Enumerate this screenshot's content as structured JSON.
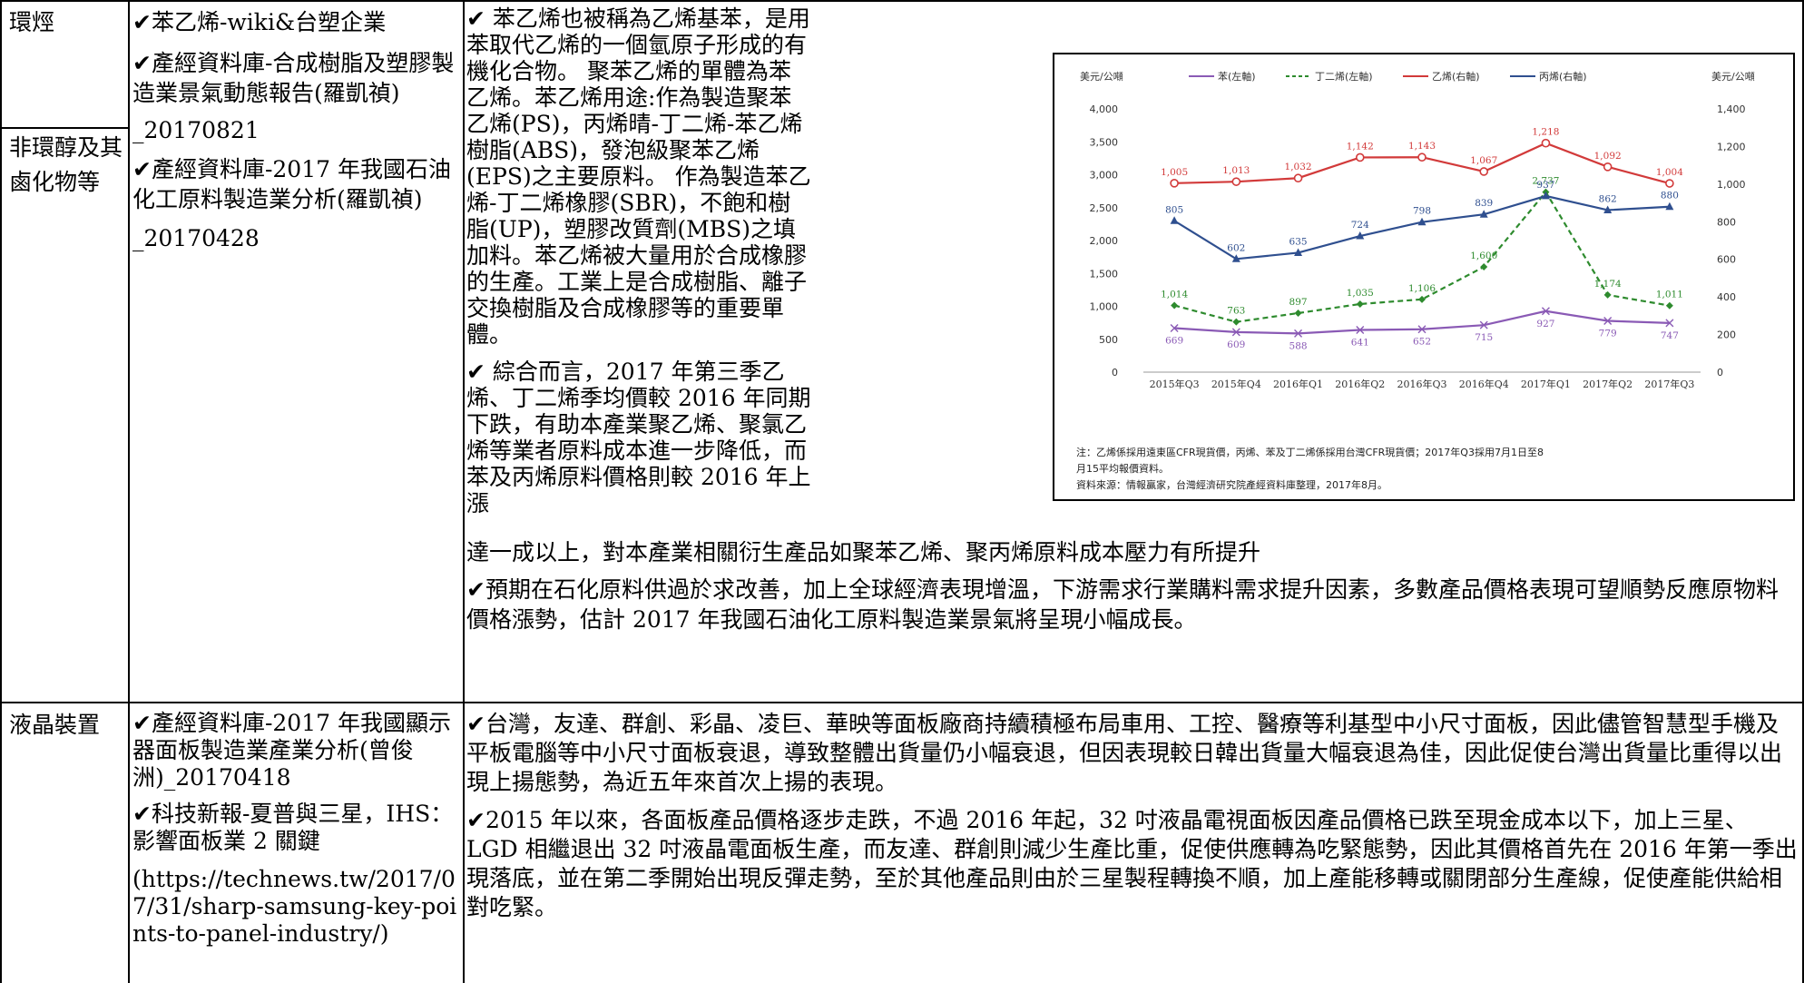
{
  "rows": [
    {
      "category": "環烴",
      "sources": [
        "✔苯乙烯-wiki&台塑企業",
        "✔產經資料庫-合成樹脂及塑膠製造業景氣動態報告(羅凱禎)",
        "_20170821",
        "✔產經資料庫-2017 年我國石油化工原料製造業分析(羅凱禎)",
        "_20170428"
      ],
      "content": [
        "✔  苯乙烯也被稱為乙烯基苯，是用苯取代乙烯的一個氫原子形成的有機化合物。 聚苯乙烯的單體為苯乙烯。苯乙烯用途:作為製造聚苯乙烯(PS)，丙烯晴-丁二烯-苯乙烯樹脂(ABS)，發泡級聚苯乙烯(EPS)之主要原料。  作為製造苯乙烯-丁二烯橡膠(SBR)，不飽和樹脂(UP)，塑膠改質劑(MBS)之填加料。苯乙烯被大量用於合成橡膠的生產。工業上是合成樹脂、離子交換樹脂及合成橡膠等的重要單體。",
        "✔  綜合而言，2017 年第三季乙烯、丁二烯季均價較 2016 年同期下跌，有助本產業聚乙烯、聚氯乙烯等業者原料成本進一步降低，而苯及丙烯原料價格則較 2016 年上漲",
        "達一成以上，對本產業相關衍生產品如聚苯乙烯、聚丙烯原料成本壓力有所提升",
        "✔預期在石化原料供過於求改善，加上全球經濟表現增溫，下游需求行業購料需求提升因素，多數產品價格表現可望順勢反應原物料價格漲勢，估計 2017 年我國石油化工原料製造業景氣將呈現小幅成長。"
      ]
    },
    {
      "category": "非環醇及其鹵化物等"
    },
    {
      "category": "液晶裝置",
      "sources": [
        "✔產經資料庫-2017 年我國顯示器面板製造業產業分析(曾俊洲)_20170418",
        "✔科技新報-夏普與三星，IHS：影響面板業 2 關鍵",
        "(https://technews.tw/2017/07/31/sharp-samsung-key-points-to-panel-industry/)"
      ],
      "content": [
        "✔台灣，友達、群創、彩晶、凌巨、華映等面板廠商持續積極布局車用、工控、醫療等利基型中小尺寸面板，因此儘管智慧型手機及平板電腦等中小尺寸面板衰退，導致整體出貨量仍小幅衰退，但因表現較日韓出貨量大幅衰退為佳，因此促使台灣出貨量比重得以出現上揚態勢，為近五年來首次上揚的表現。",
        "✔2015 年以來，各面板產品價格逐步走跌，不過 2016 年起，32 吋液晶電視面板因產品價格已跌至現金成本以下，加上三星、LGD 相繼退出 32 吋液晶電面板生產，而友達、群創則減少生產比重，促使供應轉為吃緊態勢，因此其價格首先在 2016 年第一季出現落底，並在第二季開始出現反彈走勢，至於其他產品則由於三星製程轉換不順，加上產能移轉或關閉部分生產線，促使產能供給相對吃緊。"
      ]
    }
  ],
  "chart_data": {
    "type": "line",
    "left_axis_unit": "美元/公噸",
    "right_axis_unit": "美元/公噸",
    "categories": [
      "2015年Q3",
      "2015年Q4",
      "2016年Q1",
      "2016年Q2",
      "2016年Q3",
      "2016年Q4",
      "2017年Q1",
      "2017年Q2",
      "2017年Q3"
    ],
    "ylim_left": [
      0,
      4000
    ],
    "yticks_left": [
      "0",
      "500",
      "1,000",
      "1,500",
      "2,000",
      "2,500",
      "3,000",
      "3,500",
      "4,000"
    ],
    "ylim_right": [
      0,
      1400
    ],
    "yticks_right": [
      "0",
      "200",
      "400",
      "600",
      "800",
      "1,000",
      "1,200",
      "1,400"
    ],
    "series": [
      {
        "name": "苯(左軸)",
        "axis": "left",
        "color": "#8a5ab5",
        "style": "solid",
        "marker": "x",
        "values": [
          669,
          609,
          588,
          641,
          652,
          715,
          927,
          779,
          747
        ],
        "labels": [
          "669",
          "609",
          "588",
          "641",
          "652",
          "715",
          "927",
          "779",
          "747"
        ]
      },
      {
        "name": "丁二烯(左軸)",
        "axis": "left",
        "color": "#2e8b2e",
        "style": "dashed",
        "marker": "diamond",
        "values": [
          1014,
          763,
          897,
          1035,
          1106,
          1600,
          2737,
          1174,
          1011
        ],
        "labels": [
          "1,014",
          "763",
          "897",
          "1,035",
          "1,106",
          "1,600",
          "2,737",
          "1,174",
          "1,011"
        ]
      },
      {
        "name": "乙烯(右軸)",
        "axis": "right",
        "color": "#d23a3a",
        "style": "solid",
        "marker": "circle",
        "values": [
          1005,
          1013,
          1032,
          1142,
          1143,
          1067,
          1218,
          1092,
          1004
        ],
        "labels": [
          "1,005",
          "1,013",
          "1,032",
          "1,142",
          "1,143",
          "1,067",
          "1,218",
          "1,092",
          "1,004"
        ]
      },
      {
        "name": "丙烯(右軸)",
        "axis": "right",
        "color": "#2f4f8f",
        "style": "solid",
        "marker": "triangle",
        "values": [
          805,
          602,
          635,
          724,
          798,
          839,
          937,
          862,
          880
        ],
        "labels": [
          "805",
          "602",
          "635",
          "724",
          "798",
          "839",
          "937",
          "862",
          "880"
        ]
      }
    ],
    "notes": [
      "注：乙烯係採用遠東區CFR現貨價，丙烯、苯及丁二烯係採用台灣CFR現貨價；2017年Q3採用7月1日至8",
      "月15平均報價資料。",
      "資料來源：情報贏家，台灣經濟研究院產經資料庫整理，2017年8月。"
    ]
  }
}
